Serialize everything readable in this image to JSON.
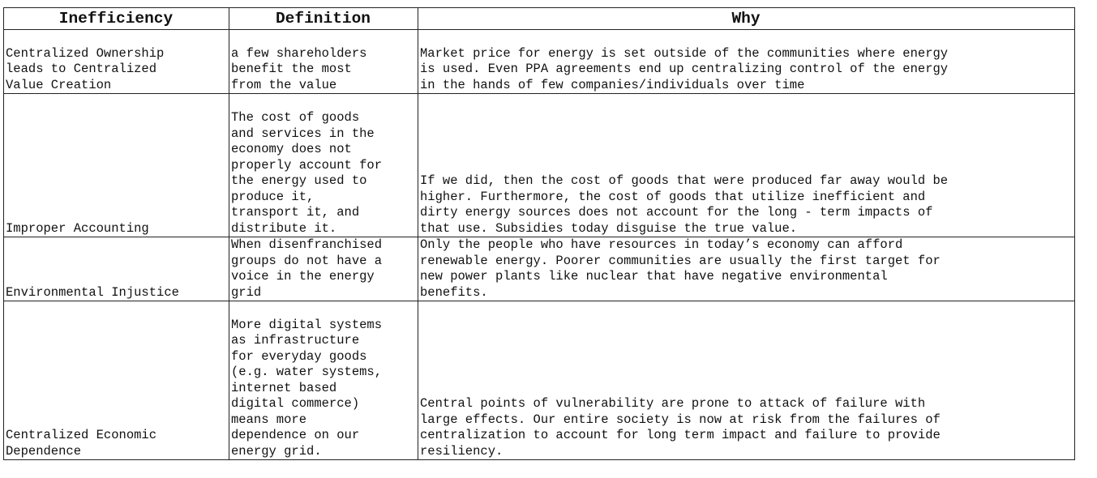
{
  "table": {
    "headers": [
      "Inefficiency",
      "Definition",
      "Why"
    ],
    "rows": [
      {
        "inefficiency": "Centralized Ownership\nleads to Centralized\nValue Creation",
        "definition": "a few shareholders\nbenefit the most\nfrom the value",
        "why": "Market price for energy is set outside of the communities where energy\nis used. Even PPA agreements end up centralizing control of the energy\nin the hands of few companies/individuals over time"
      },
      {
        "inefficiency": "Improper Accounting",
        "definition": "The cost of goods\nand services in the\neconomy does not\nproperly account for\nthe energy used to\nproduce it,\ntransport it, and\ndistribute it.",
        "why": "If we did, then the cost of goods that were produced far away would be\nhigher. Furthermore, the cost of goods that utilize inefficient and\ndirty energy sources does not account for the long - term impacts of\nthat use. Subsidies today disguise the true value."
      },
      {
        "inefficiency": "Environmental Injustice",
        "definition": "When disenfranchised\ngroups do not have a\nvoice in the energy\ngrid",
        "why": "Only the people who have resources in today’s economy can afford\nrenewable energy. Poorer communities are usually the first target for\nnew power plants like nuclear that have negative environmental\nbenefits."
      },
      {
        "inefficiency": "Centralized Economic\nDependence",
        "definition": "More digital systems\nas infrastructure\nfor everyday goods\n(e.g. water systems,\ninternet based\ndigital commerce)\nmeans more\ndependence on our\nenergy grid.",
        "why": "Central points of vulnerability are prone to attack of failure with\nlarge effects. Our entire society is now at risk from the failures of\ncentralization to account for long term impact and failure to provide\nresiliency."
      }
    ]
  }
}
